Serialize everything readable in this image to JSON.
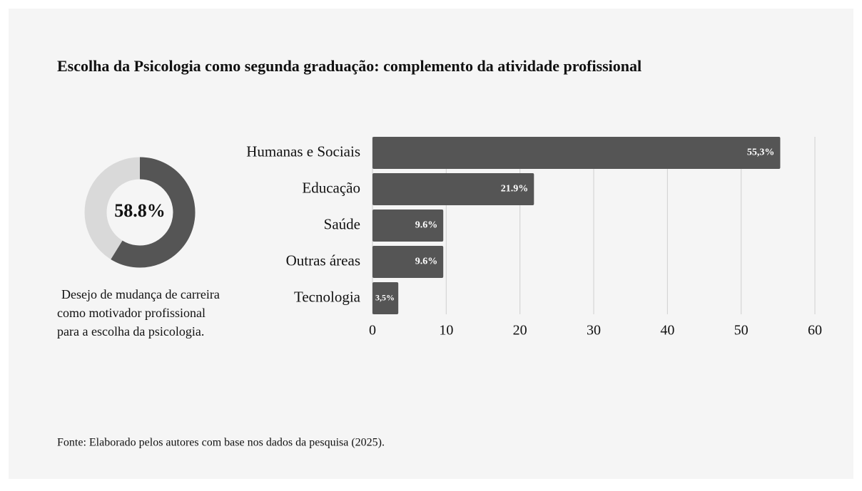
{
  "title": "Escolha da Psicologia como segunda graduação: complemento da atividade profissional",
  "source": "Fonte: Elaborado pelos autores com base nos dados da pesquisa (2025).",
  "chart_data": [
    {
      "type": "donut",
      "value": 58.8,
      "value_label": "58.8%",
      "color": "#555555",
      "track_color": "#d9d9d9",
      "caption": [
        "Desejo de mudança de carreira",
        "como motivador profissional",
        "para a escolha da psicologia."
      ]
    },
    {
      "type": "bar",
      "orientation": "horizontal",
      "categories": [
        "Humanas e Sociais",
        "Educação",
        "Saúde",
        "Outras áreas",
        "Tecnologia"
      ],
      "values": [
        55.3,
        21.9,
        9.6,
        9.6,
        3.5
      ],
      "value_labels": [
        "55,3%",
        "21.9%",
        "9.6%",
        "9.6%",
        "3,5%"
      ],
      "color": "#555555",
      "xlim": [
        0,
        60
      ],
      "xticks": [
        0,
        10,
        20,
        30,
        40,
        50,
        60
      ],
      "grid": true
    }
  ]
}
